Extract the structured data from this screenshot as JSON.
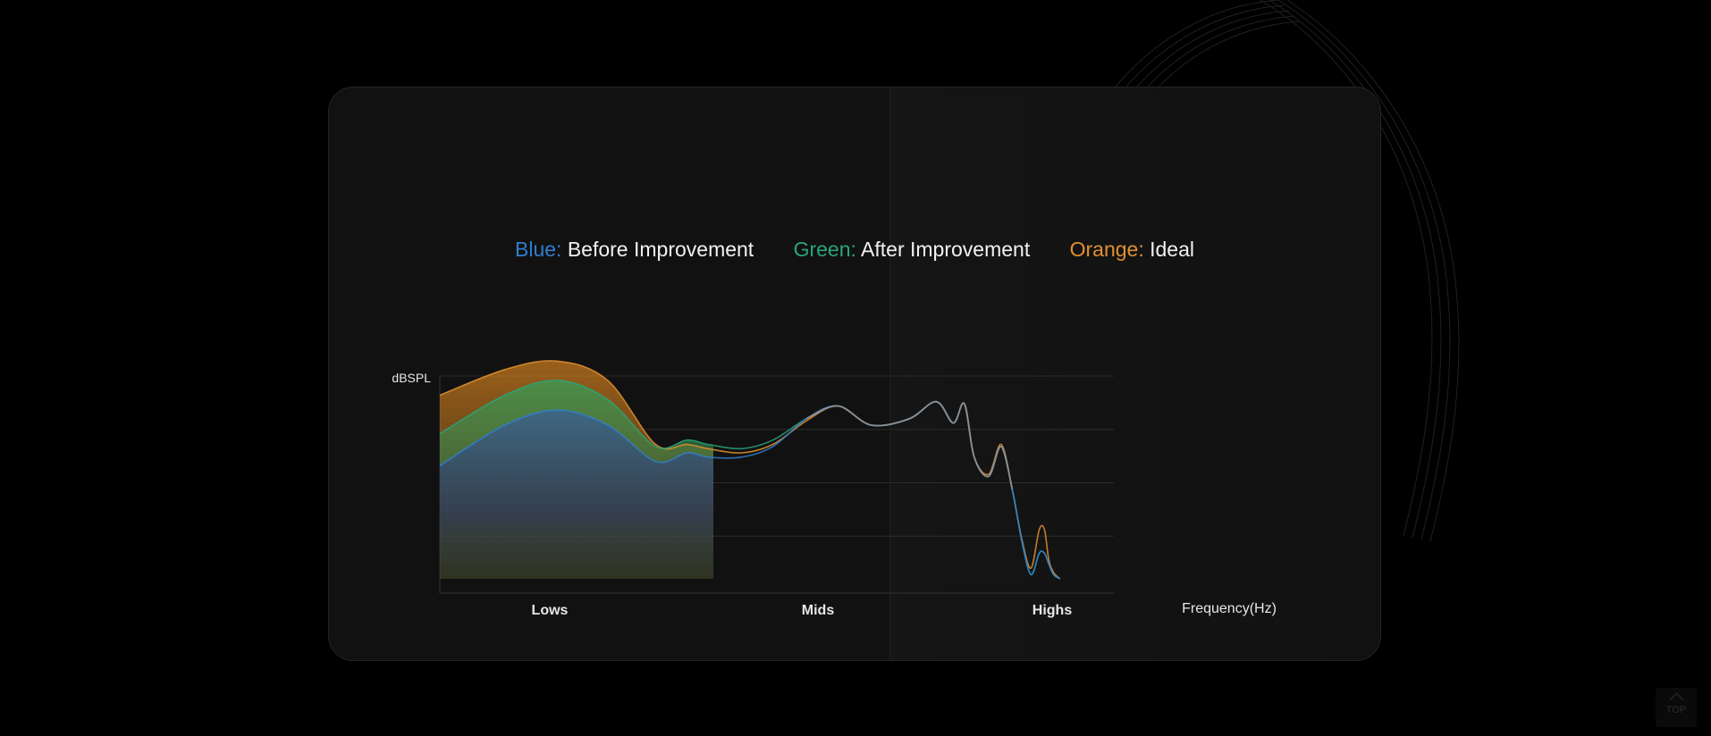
{
  "legend": [
    {
      "key": "Blue:",
      "text": "Before Improvement",
      "color": "#2f7fd0"
    },
    {
      "key": "Green:",
      "text": "After Improvement",
      "color": "#2aa57a"
    },
    {
      "key": "Orange:",
      "text": "Ideal",
      "color": "#e09030"
    }
  ],
  "colors": {
    "blue": "#2f7fd0",
    "green": "#2aa57a",
    "orange": "#e09030",
    "grid": "#2c2c2c",
    "label": "#e6e6e6"
  },
  "chart_data": {
    "type": "area",
    "ylabel": "dBSPL",
    "xlabel": "Frequency(Hz)",
    "regions": [
      "Lows",
      "Mids",
      "Highs"
    ],
    "x_scale": "log",
    "xlim": [
      20,
      20000
    ],
    "ylim": [
      0,
      100
    ],
    "grid": true,
    "legend_position": "top",
    "series": [
      {
        "name": "Before Improvement",
        "color": "blue",
        "x": [
          20,
          40,
          70,
          120,
          200,
          280,
          350,
          500,
          700,
          1000,
          1400,
          2000,
          3000,
          4000,
          4800,
          5400,
          6000,
          7000,
          8000,
          9000,
          10000,
          11000,
          12000,
          12700,
          13300,
          14000,
          15000
        ],
        "y": [
          58,
          77,
          84,
          77,
          60,
          64,
          62,
          62,
          67,
          80,
          86,
          77,
          80,
          88,
          78,
          87,
          62,
          53,
          67,
          47,
          22,
          7,
          17,
          17,
          12,
          7,
          5
        ]
      },
      {
        "name": "After Improvement",
        "color": "green",
        "x": [
          20,
          40,
          70,
          120,
          200,
          280,
          350,
          500,
          700,
          1000,
          1400,
          2000,
          3000,
          4000,
          4800,
          5400,
          6000,
          7000,
          8000,
          9000,
          10000,
          11000,
          12000,
          12700,
          13300,
          14000,
          15000
        ],
        "y": [
          73,
          91,
          98,
          89,
          67,
          70,
          68,
          66,
          70,
          80,
          86,
          77,
          80,
          88,
          78,
          87,
          62,
          53,
          67,
          47,
          22,
          7,
          17,
          17,
          12,
          7,
          5
        ]
      },
      {
        "name": "Ideal",
        "color": "orange",
        "x": [
          20,
          40,
          70,
          120,
          200,
          280,
          350,
          500,
          700,
          1000,
          1400,
          2000,
          3000,
          4000,
          4800,
          5400,
          6000,
          7000,
          8000,
          9000,
          10000,
          11000,
          12000,
          12700,
          13300,
          14000,
          15000
        ],
        "y": [
          91,
          103,
          107,
          98,
          68,
          68,
          66,
          64,
          68,
          79,
          86,
          77,
          80,
          88,
          78,
          87,
          62,
          54,
          68,
          47,
          23,
          10,
          28,
          28,
          14,
          8,
          5
        ]
      }
    ]
  },
  "top_button": {
    "label": "TOP"
  }
}
